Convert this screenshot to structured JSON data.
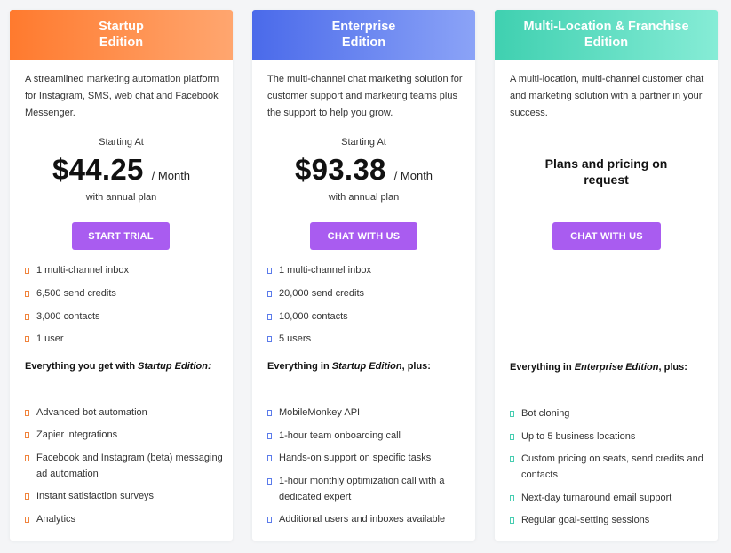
{
  "plans": [
    {
      "title": "Startup\nEdition",
      "description": "A streamlined marketing automation platform for Instagram, SMS, web chat and Facebook Messenger.",
      "starting_at": "Starting At",
      "price": "$44.25",
      "per": "/ Month",
      "annual": "with annual plan",
      "button": "START TRIAL",
      "basics": [
        "1 multi-channel inbox",
        "6,500 send credits",
        "3,000 contacts",
        "1 user"
      ],
      "heading_prefix": "Everything you get with ",
      "heading_em": "Startup Edition:",
      "heading_suffix": "",
      "extras": [
        "Advanced bot automation",
        "Zapier integrations",
        "Facebook and Instagram (beta) messaging ad automation",
        "Instant satisfaction surveys",
        "Analytics"
      ],
      "accent": "#ff7a2e"
    },
    {
      "title": "Enterprise\nEdition",
      "description": "The multi-channel chat marketing solution for customer support and marketing teams plus the support to help you grow.",
      "starting_at": "Starting At",
      "price": "$93.38",
      "per": "/ Month",
      "annual": "with annual plan",
      "button": "CHAT WITH US",
      "basics": [
        "1 multi-channel inbox",
        "20,000 send credits",
        "10,000 contacts",
        "5 users"
      ],
      "heading_prefix": "Everything in ",
      "heading_em": "Startup Edition",
      "heading_suffix": ", plus:",
      "extras": [
        "MobileMonkey API",
        "1-hour team onboarding call",
        "Hands-on support on specific tasks",
        "1-hour monthly optimization call with a dedicated expert",
        "Additional users and inboxes available"
      ],
      "accent": "#4a6aea"
    },
    {
      "title": "Multi-Location & Franchise\nEdition",
      "description": "A multi-location, multi-channel customer chat and marketing solution with a partner in your success.",
      "request": "Plans and pricing on\nrequest",
      "button": "CHAT WITH US",
      "heading_prefix": "Everything in ",
      "heading_em": "Enterprise Edition",
      "heading_suffix": ", plus:",
      "extras": [
        "Bot cloning",
        "Up to 5 business locations",
        "Custom pricing on seats, send credits and contacts",
        "Next-day turnaround email support",
        "Regular goal-setting sessions"
      ],
      "accent": "#3fd0b0"
    }
  ],
  "button_color": "#a95cf0"
}
